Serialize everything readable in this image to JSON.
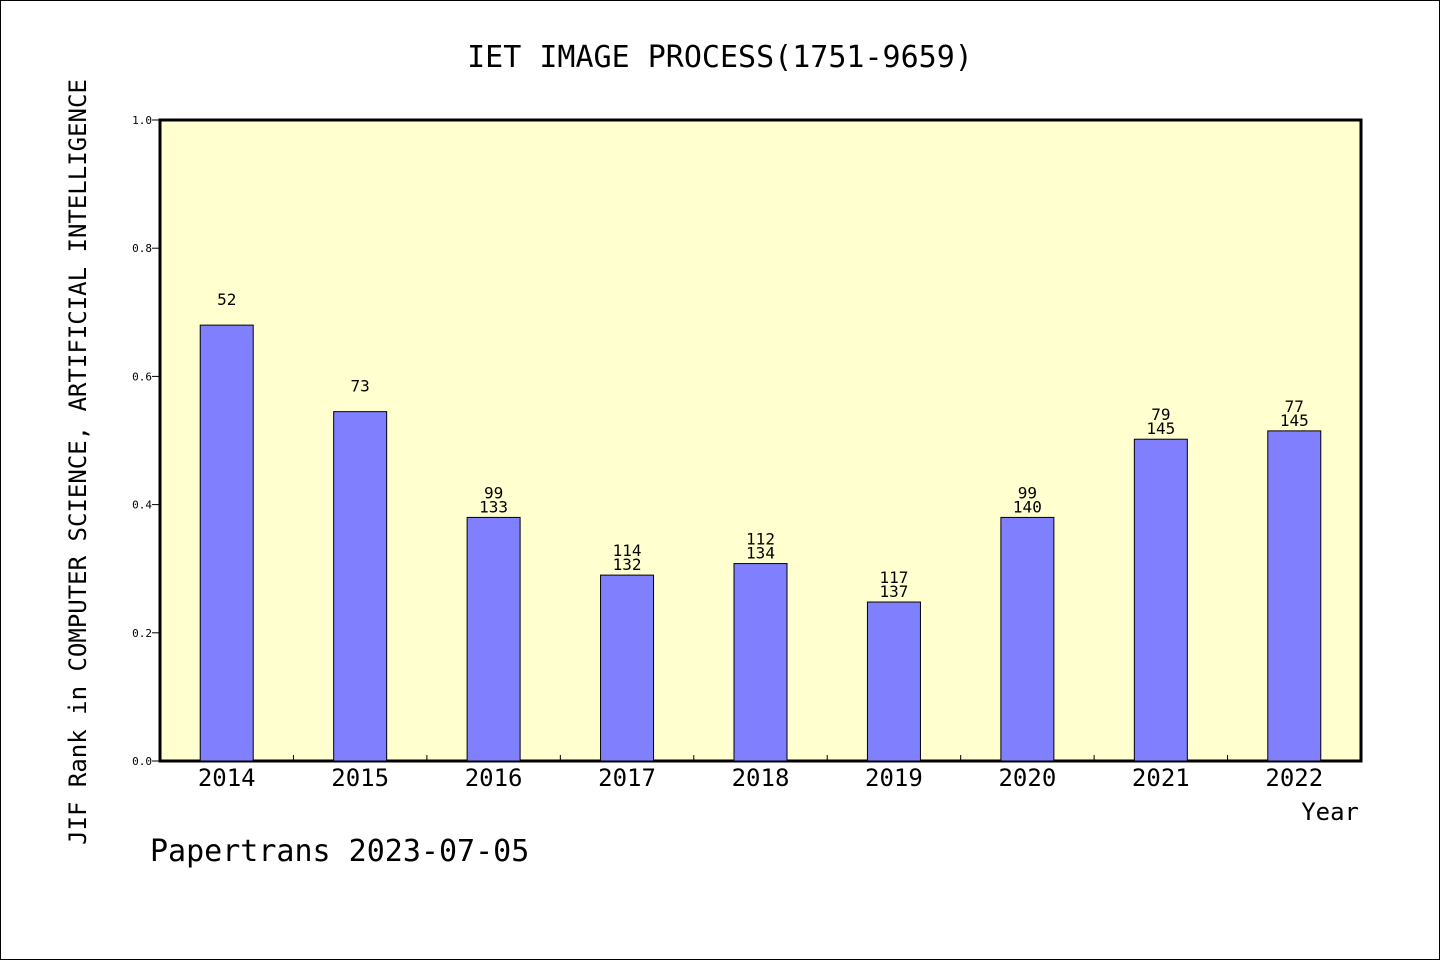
{
  "chart_data": {
    "type": "bar",
    "title": "IET IMAGE PROCESS(1751-9659)",
    "xlabel": "Year",
    "ylabel": "JIF Rank in COMPUTER SCIENCE, ARTIFICIAL INTELLIGENCE",
    "categories": [
      "2014",
      "2015",
      "2016",
      "2017",
      "2018",
      "2019",
      "2020",
      "2021",
      "2022"
    ],
    "values": [
      0.68,
      0.545,
      0.38,
      0.29,
      0.308,
      0.248,
      0.38,
      0.502,
      0.515
    ],
    "rank_labels": [
      [
        "52"
      ],
      [
        "73"
      ],
      [
        "99",
        "133"
      ],
      [
        "114",
        "132"
      ],
      [
        "112",
        "134"
      ],
      [
        "117",
        "137"
      ],
      [
        "99",
        "140"
      ],
      [
        "79",
        "145"
      ],
      [
        "77",
        "145"
      ]
    ],
    "ylim": [
      0,
      1.0
    ],
    "yticks": [
      "0.0",
      "0.2",
      "0.4",
      "0.6",
      "0.8",
      "1.0"
    ],
    "grid": false,
    "colors": {
      "bar": "#8080ff",
      "plot_background": "#ffffd0",
      "bar_edge": "#000000"
    }
  },
  "footer": {
    "credit": "Papertrans 2023-07-05"
  }
}
